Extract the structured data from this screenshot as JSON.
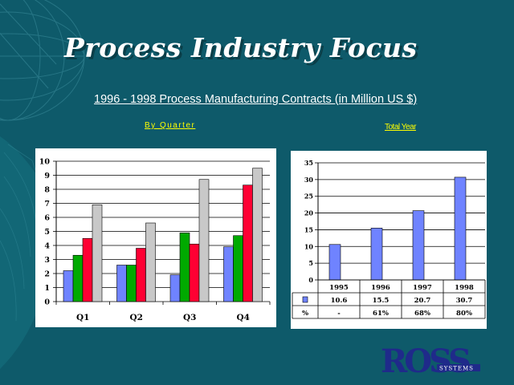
{
  "title": "Process Industry Focus",
  "subtitle": "1996 - 1998 Process Manufacturing Contracts (in Million US $)",
  "left_label": "By Quarter",
  "right_label": "Total Year",
  "logo": {
    "main": "ROSS",
    "sub": "SYSTEMS"
  },
  "colors": {
    "background": "#0e5a6a",
    "blue": "#6f83ff",
    "green": "#00aa00",
    "red": "#ff0033",
    "gray": "#c8c8c8",
    "title_text": "#ffffff",
    "label_text": "#ffff00"
  },
  "chart_data": [
    {
      "type": "bar",
      "categories": [
        "Q1",
        "Q2",
        "Q3",
        "Q4"
      ],
      "series": [
        {
          "color": "#6f83ff",
          "values": [
            2.2,
            2.6,
            1.9,
            3.9
          ]
        },
        {
          "color": "#00aa00",
          "values": [
            3.3,
            2.6,
            4.9,
            4.7
          ]
        },
        {
          "color": "#ff0033",
          "values": [
            4.5,
            3.8,
            4.1,
            8.3
          ]
        },
        {
          "color": "#c8c8c8",
          "values": [
            6.9,
            5.6,
            8.7,
            9.5
          ]
        }
      ],
      "ylim": [
        0,
        10
      ],
      "yticks": [
        "0",
        "1",
        "2",
        "3",
        "4",
        "5",
        "6",
        "7",
        "8",
        "9",
        "10"
      ],
      "grid": true
    },
    {
      "type": "bar",
      "categories": [
        "1995",
        "1996",
        "1997",
        "1998"
      ],
      "series": [
        {
          "color": "#6f83ff",
          "values": [
            10.6,
            15.5,
            20.7,
            30.7
          ]
        }
      ],
      "ylim": [
        0,
        35
      ],
      "yticks": [
        "0",
        "5",
        "10",
        "15",
        "20",
        "25",
        "30",
        "35"
      ],
      "grid": true,
      "table": {
        "value_row": [
          "10.6",
          "15.5",
          "20.7",
          "30.7"
        ],
        "pct_label": "%",
        "pct_row": [
          "-",
          "61%",
          "68%",
          "80%"
        ]
      }
    }
  ]
}
